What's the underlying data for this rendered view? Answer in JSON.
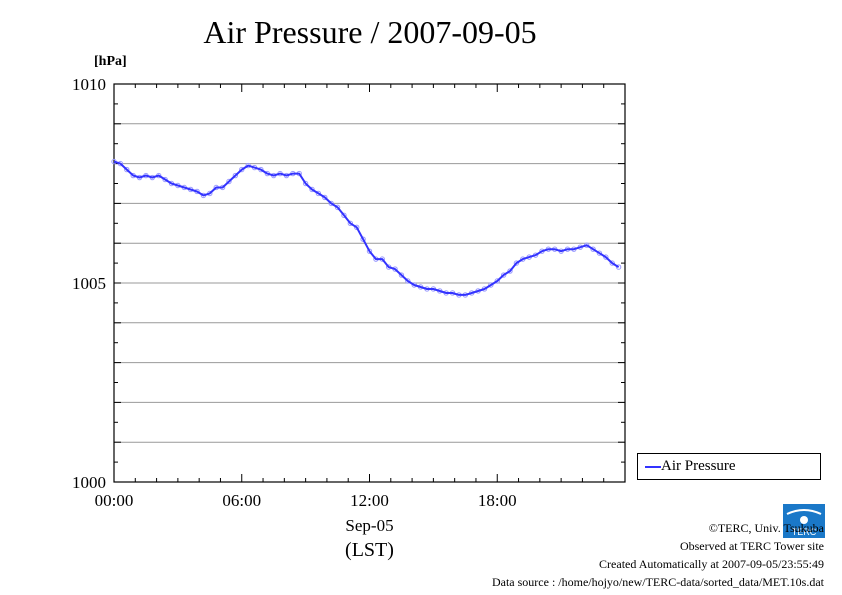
{
  "title": "Air Pressure / 2007-09-05",
  "unit": "[hPa]",
  "legend_label": "Air Pressure",
  "logo_text": "TERC",
  "footer": {
    "copyright": "©TERC, Univ. Tsukuba",
    "observed": "Observed at TERC Tower site",
    "created": "Created Automatically at 2007-09-05/23:55:49",
    "source": "Data source : /home/hojyo/new/TERC-data/sorted_data/MET.10s.dat"
  },
  "colors": {
    "series": "#3333ff",
    "marker": "#9999ff",
    "grid": "#999999",
    "logo": "#1a78c8"
  },
  "chart_data": {
    "type": "line",
    "title": "Air Pressure / 2007-09-05",
    "ylabel": "[hPa]",
    "xlabel": "Sep-05",
    "xlabel2": "(LST)",
    "xlim": [
      0,
      24
    ],
    "ylim": [
      1000,
      1010
    ],
    "yticks": [
      1000,
      1005,
      1010
    ],
    "xticks": [
      0,
      6,
      12,
      18
    ],
    "xtick_labels": [
      "00:00",
      "06:00",
      "12:00",
      "18:00"
    ],
    "grid": true,
    "legend": "right",
    "series": [
      {
        "name": "Air Pressure",
        "x": [
          0.0,
          0.3,
          0.6,
          0.9,
          1.2,
          1.5,
          1.8,
          2.1,
          2.4,
          2.7,
          3.0,
          3.3,
          3.6,
          3.9,
          4.2,
          4.5,
          4.8,
          5.1,
          5.4,
          5.7,
          6.0,
          6.3,
          6.6,
          6.9,
          7.2,
          7.5,
          7.8,
          8.1,
          8.4,
          8.7,
          9.0,
          9.3,
          9.6,
          9.9,
          10.2,
          10.5,
          10.8,
          11.1,
          11.4,
          11.7,
          12.0,
          12.3,
          12.6,
          12.9,
          13.2,
          13.5,
          13.8,
          14.1,
          14.4,
          14.7,
          15.0,
          15.3,
          15.6,
          15.9,
          16.2,
          16.5,
          16.8,
          17.1,
          17.4,
          17.7,
          18.0,
          18.3,
          18.6,
          18.9,
          19.2,
          19.5,
          19.8,
          20.1,
          20.4,
          20.7,
          21.0,
          21.3,
          21.6,
          21.9,
          22.2,
          22.5,
          22.8,
          23.1,
          23.4,
          23.7
        ],
        "values": [
          1008.05,
          1008.0,
          1007.85,
          1007.7,
          1007.65,
          1007.7,
          1007.65,
          1007.7,
          1007.6,
          1007.5,
          1007.45,
          1007.4,
          1007.35,
          1007.3,
          1007.2,
          1007.25,
          1007.4,
          1007.4,
          1007.55,
          1007.7,
          1007.85,
          1007.95,
          1007.9,
          1007.85,
          1007.75,
          1007.7,
          1007.75,
          1007.7,
          1007.75,
          1007.75,
          1007.5,
          1007.35,
          1007.25,
          1007.15,
          1007.0,
          1006.9,
          1006.7,
          1006.5,
          1006.4,
          1006.1,
          1005.8,
          1005.6,
          1005.6,
          1005.4,
          1005.35,
          1005.2,
          1005.05,
          1004.95,
          1004.9,
          1004.85,
          1004.85,
          1004.8,
          1004.75,
          1004.75,
          1004.7,
          1004.7,
          1004.75,
          1004.8,
          1004.85,
          1004.95,
          1005.05,
          1005.2,
          1005.3,
          1005.5,
          1005.6,
          1005.65,
          1005.7,
          1005.8,
          1005.85,
          1005.85,
          1005.8,
          1005.85,
          1005.85,
          1005.9,
          1005.95,
          1005.85,
          1005.75,
          1005.65,
          1005.5,
          1005.4
        ]
      }
    ]
  }
}
